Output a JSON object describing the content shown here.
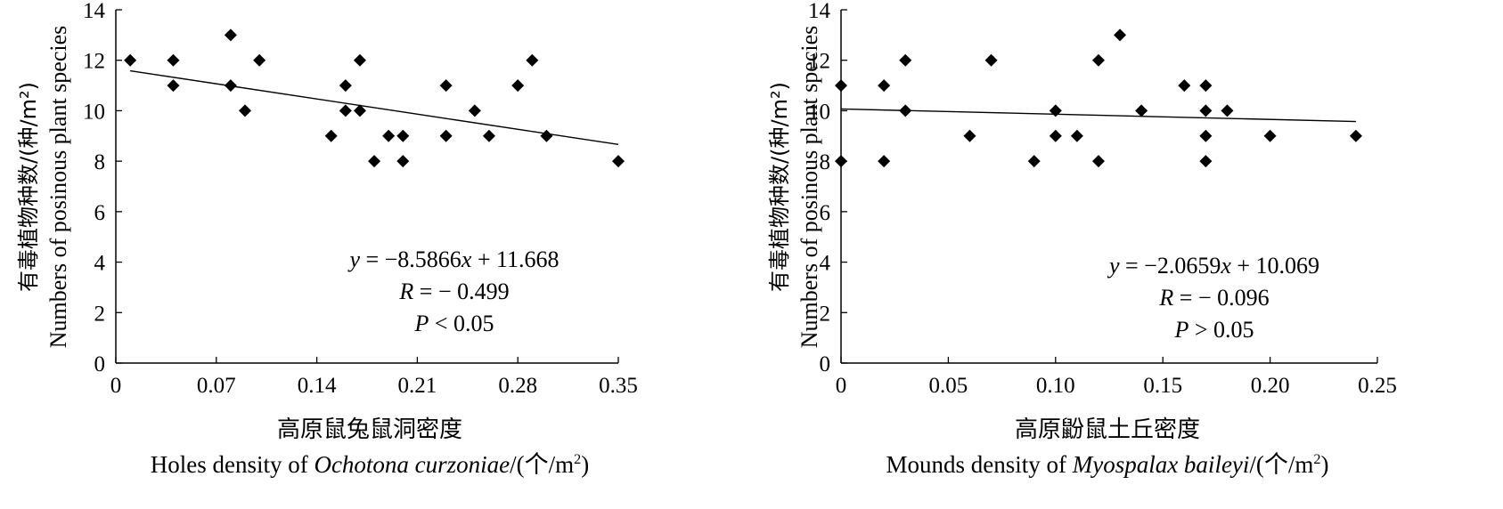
{
  "chart_data": [
    {
      "type": "scatter",
      "ylabel_cn": "有毒植物种数/(种/m²)",
      "ylabel_en": "Numbers of posinous plant species",
      "xlabel_cn": "高原鼠兔鼠洞密度",
      "xlabel_en_prefix": "Holes density of ",
      "xlabel_en_italic": "Ochotona curzoniae",
      "xlabel_en_unit": "/(个/m",
      "xlabel_en_unit_sup": "2",
      "xlabel_en_unit_end": ")",
      "xlim": [
        0,
        0.35
      ],
      "ylim": [
        0,
        14
      ],
      "x_ticks": [
        "0",
        "0.07",
        "0.14",
        "0.21",
        "0.28",
        "0.35"
      ],
      "y_ticks": [
        "0",
        "2",
        "4",
        "6",
        "8",
        "10",
        "12",
        "14"
      ],
      "points": [
        [
          0.01,
          12
        ],
        [
          0.04,
          12
        ],
        [
          0.04,
          11
        ],
        [
          0.08,
          13
        ],
        [
          0.08,
          11
        ],
        [
          0.09,
          10
        ],
        [
          0.1,
          12
        ],
        [
          0.15,
          9
        ],
        [
          0.16,
          11
        ],
        [
          0.16,
          10
        ],
        [
          0.17,
          12
        ],
        [
          0.17,
          10
        ],
        [
          0.18,
          8
        ],
        [
          0.19,
          9
        ],
        [
          0.2,
          9
        ],
        [
          0.2,
          8
        ],
        [
          0.23,
          11
        ],
        [
          0.23,
          9
        ],
        [
          0.25,
          10
        ],
        [
          0.26,
          9
        ],
        [
          0.28,
          11
        ],
        [
          0.29,
          12
        ],
        [
          0.3,
          9
        ],
        [
          0.35,
          8
        ]
      ],
      "fit": {
        "slope": -8.5866,
        "intercept": 11.668,
        "x_range": [
          0.01,
          0.35
        ]
      },
      "equation": "y = −8.5866x + 11.668",
      "r_text": "R = − 0.499",
      "p_text": "P < 0.05",
      "grid": false
    },
    {
      "type": "scatter",
      "ylabel_cn": "有毒植物种数/(种/m²)",
      "ylabel_en": "Numbers of posinous plant species",
      "xlabel_cn": "高原鼢鼠土丘密度",
      "xlabel_en_prefix": "Mounds density of ",
      "xlabel_en_italic": "Myospalax baileyi",
      "xlabel_en_unit": "/(个/m",
      "xlabel_en_unit_sup": "2",
      "xlabel_en_unit_end": ")",
      "xlim": [
        0,
        0.25
      ],
      "ylim": [
        0,
        14
      ],
      "x_ticks": [
        "0",
        "0.05",
        "0.10",
        "0.15",
        "0.20",
        "0.25"
      ],
      "y_ticks": [
        "0",
        "2",
        "4",
        "6",
        "8",
        "10",
        "12",
        "14"
      ],
      "points": [
        [
          0.0,
          11
        ],
        [
          0.0,
          8
        ],
        [
          0.02,
          11
        ],
        [
          0.02,
          8
        ],
        [
          0.03,
          12
        ],
        [
          0.03,
          10
        ],
        [
          0.06,
          9
        ],
        [
          0.07,
          12
        ],
        [
          0.09,
          8
        ],
        [
          0.1,
          10
        ],
        [
          0.1,
          9
        ],
        [
          0.11,
          9
        ],
        [
          0.12,
          12
        ],
        [
          0.12,
          8
        ],
        [
          0.13,
          13
        ],
        [
          0.14,
          10
        ],
        [
          0.16,
          11
        ],
        [
          0.17,
          11
        ],
        [
          0.17,
          10
        ],
        [
          0.17,
          9
        ],
        [
          0.17,
          8
        ],
        [
          0.18,
          10
        ],
        [
          0.2,
          9
        ],
        [
          0.24,
          9
        ]
      ],
      "fit": {
        "slope": -2.0659,
        "intercept": 10.069,
        "x_range": [
          0.0,
          0.24
        ]
      },
      "equation": "y = −2.0659x + 10.069",
      "r_text": "R = −  0.096",
      "p_text": "P > 0.05",
      "grid": false
    }
  ]
}
